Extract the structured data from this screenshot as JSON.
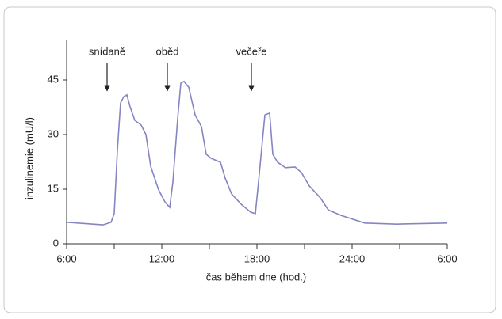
{
  "chart_data": {
    "type": "line",
    "x_label": "čas během dne (hod.)",
    "y_label": "inzulinemie (mU/l)",
    "x": [
      6,
      8.3,
      8.8,
      9,
      9.2,
      9.4,
      9.6,
      9.8,
      10,
      10.3,
      10.7,
      11,
      11.3,
      11.8,
      12.2,
      12.5,
      12.7,
      13,
      13.2,
      13.4,
      13.7,
      14.1,
      14.5,
      14.8,
      15.1,
      15.7,
      16,
      16.4,
      17,
      17.6,
      17.9,
      18.1,
      18.5,
      18.8,
      19,
      19.3,
      19.8,
      20.4,
      20.8,
      21.3,
      22,
      22.5,
      23.3,
      24.8,
      26.8,
      30
    ],
    "values": [
      5.9,
      5.2,
      5.9,
      8.3,
      25.7,
      38.7,
      40.4,
      40.9,
      37.6,
      33.9,
      32.6,
      30,
      21.3,
      14.8,
      11.5,
      10,
      17,
      34.3,
      44.1,
      44.6,
      43,
      35.4,
      32.2,
      24.6,
      23.5,
      22.4,
      18,
      13.7,
      10.9,
      8.7,
      8.3,
      17,
      35.4,
      35.9,
      24.6,
      22.4,
      20.9,
      21.1,
      19.6,
      15.9,
      12.6,
      9.3,
      7.8,
      5.7,
      5.4,
      5.7
    ],
    "color": "#8585c2",
    "xlim": [
      6,
      30
    ],
    "xticks": [
      {
        "value": 6,
        "label": "6:00"
      },
      {
        "value": 12,
        "label": "12:00"
      },
      {
        "value": 18,
        "label": "18:00"
      },
      {
        "value": 24,
        "label": "24:00"
      },
      {
        "value": 30,
        "label": "6:00"
      }
    ],
    "xminorticks": [
      9,
      15,
      21,
      27
    ],
    "ylim": [
      0,
      56
    ],
    "yticks": [
      0,
      15,
      30,
      45
    ],
    "annotations": [
      {
        "text": "snídaně",
        "x": 8.55,
        "y": 42
      },
      {
        "text": "oběd",
        "x": 12.35,
        "y": 42
      },
      {
        "text": "večeře",
        "x": 17.65,
        "y": 42
      }
    ]
  }
}
